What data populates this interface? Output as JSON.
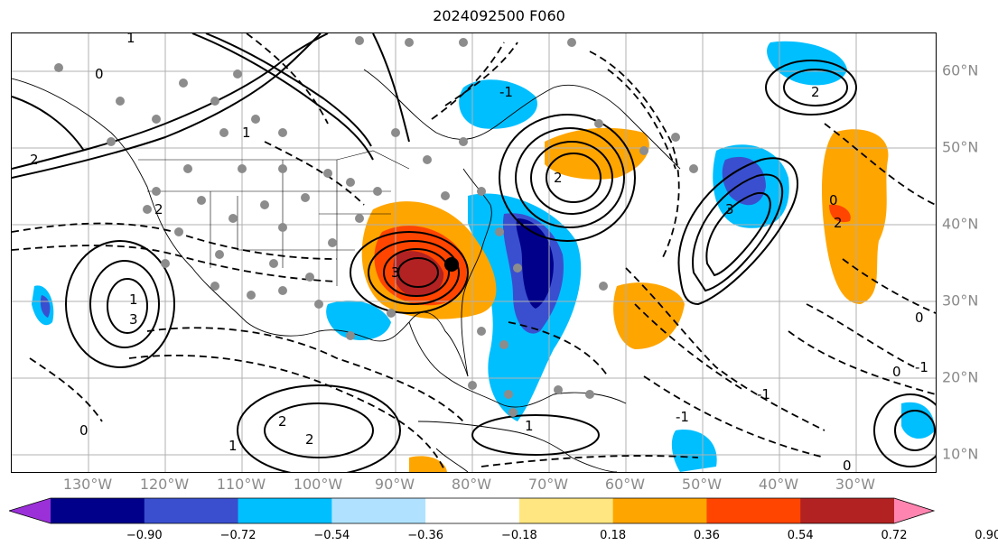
{
  "title": "2024092500 F060",
  "lon_labels": [
    "130°W",
    "120°W",
    "110°W",
    "100°W",
    "90°W",
    "80°W",
    "70°W",
    "60°W",
    "50°W",
    "40°W",
    "30°W"
  ],
  "lat_labels": [
    "60°N",
    "50°N",
    "40°N",
    "30°N",
    "20°N",
    "10°N"
  ],
  "colorbar": {
    "ticks": [
      "−0.90",
      "−0.72",
      "−0.54",
      "−0.36",
      "−0.18",
      "0.18",
      "0.36",
      "0.54",
      "0.72",
      "0.90"
    ],
    "colors": [
      "#9b30d9",
      "#00008b",
      "#3a4fcf",
      "#00bfff",
      "#b0e2ff",
      "#ffffff",
      "#ffe680",
      "#ffa500",
      "#ff4500",
      "#b22222",
      "#ff85b0"
    ]
  },
  "contour_labels": [
    "1",
    "0",
    "2",
    "1",
    "-1",
    "2",
    "1",
    "0",
    "3",
    "2",
    "3",
    "1",
    "-1",
    "0",
    "2",
    "2",
    "1",
    "3",
    "0",
    "2",
    "2",
    "-1",
    "-1",
    "0",
    "0"
  ],
  "map_extent": {
    "lon": [
      -136,
      -15
    ],
    "lat": [
      8,
      65
    ]
  }
}
